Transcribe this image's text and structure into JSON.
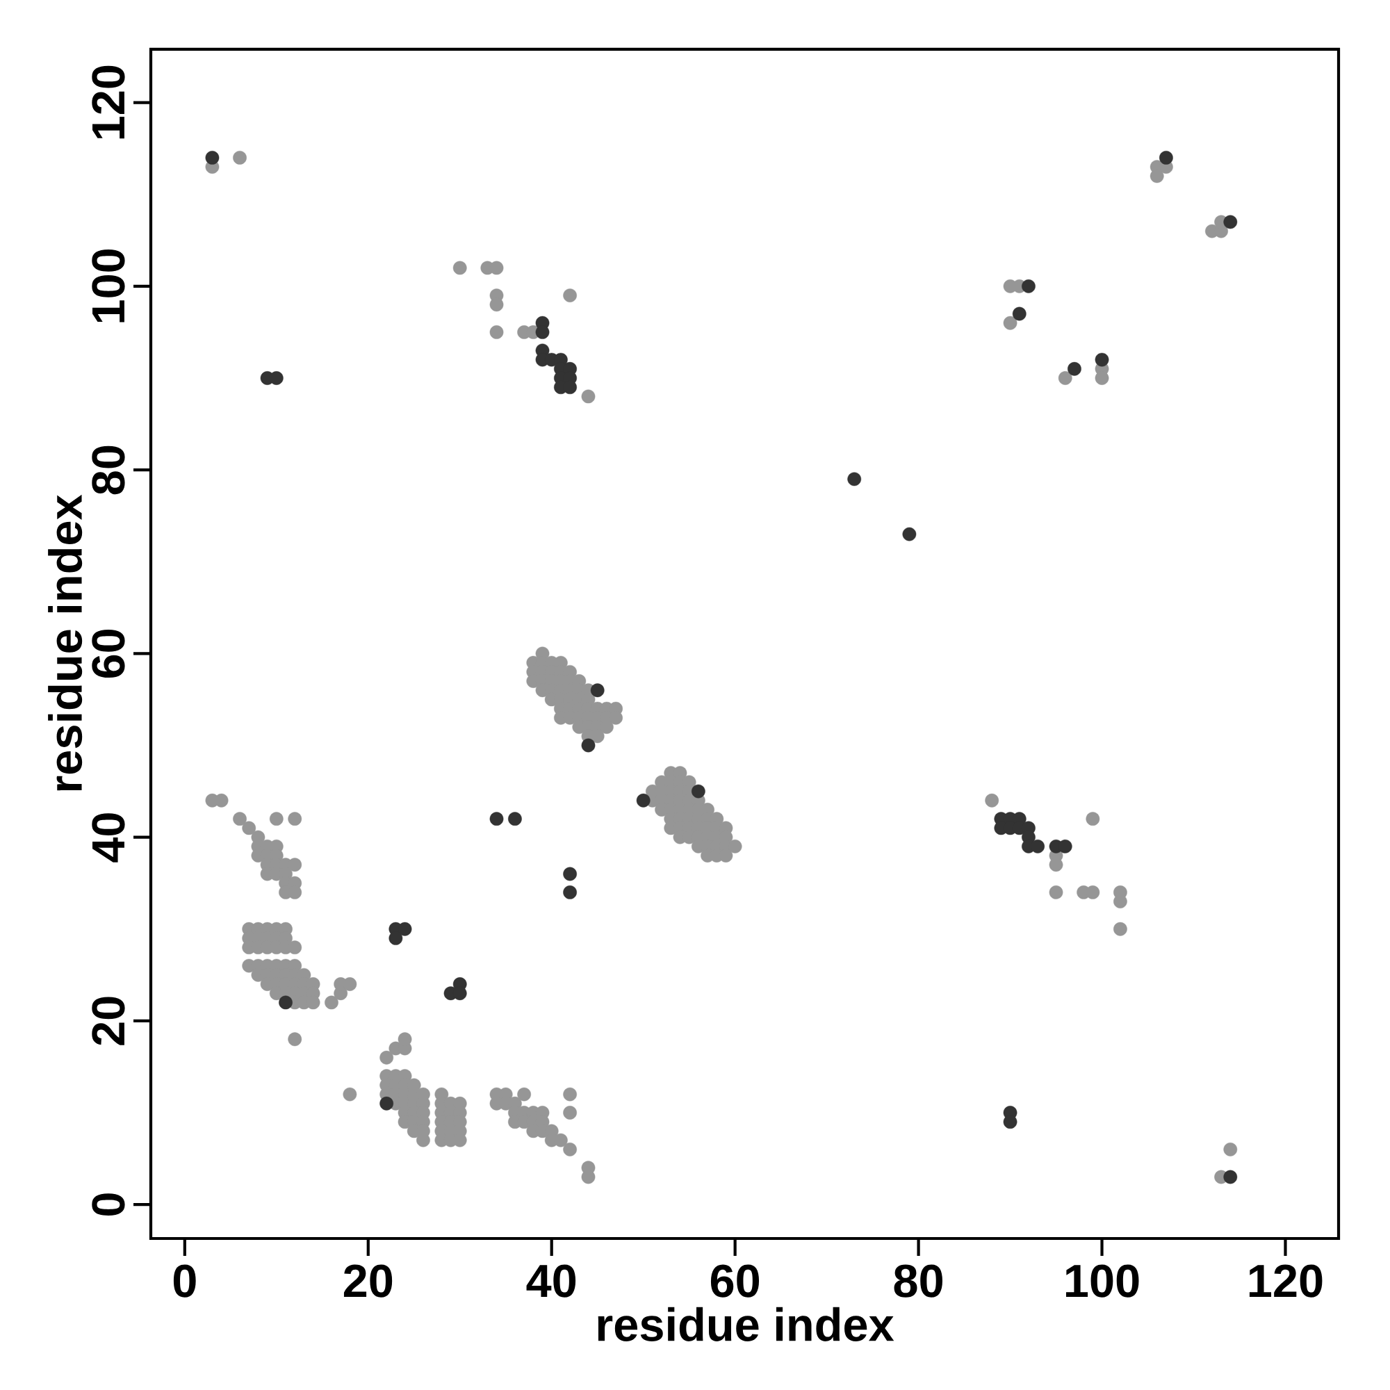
{
  "chart_data": {
    "type": "scatter",
    "xlabel": "residue index",
    "ylabel": "residue index",
    "xlim": [
      -3.7,
      125.8
    ],
    "ylim": [
      -3.7,
      125.8
    ],
    "xticks": [
      0,
      20,
      40,
      60,
      80,
      100,
      120
    ],
    "yticks": [
      0,
      20,
      40,
      60,
      80,
      100,
      120
    ],
    "grid": false,
    "series": [
      {
        "color": "#969696",
        "x": [
          3,
          6,
          106,
          107,
          106,
          112,
          113,
          113,
          30,
          33,
          34,
          34,
          34,
          34,
          37,
          38,
          42,
          44,
          90,
          91,
          90,
          96,
          100,
          100,
          88,
          95,
          95,
          95,
          98,
          99,
          99,
          102,
          102,
          102,
          113,
          114,
          44,
          44,
          42,
          42,
          42,
          18,
          12,
          3,
          4,
          6,
          10,
          12,
          16,
          17,
          17,
          18
        ],
        "values": [
          113,
          114,
          113,
          113,
          112,
          106,
          106,
          107,
          102,
          102,
          102,
          99,
          98,
          95,
          95,
          95,
          99,
          88,
          100,
          100,
          96,
          90,
          91,
          90,
          44,
          38,
          37,
          34,
          34,
          34,
          42,
          34,
          33,
          30,
          3,
          6,
          4,
          3,
          12,
          10,
          6,
          12,
          18,
          44,
          44,
          42,
          42,
          42,
          22,
          23,
          24,
          24
        ]
      },
      {
        "color": "#969696",
        "x": [
          7,
          8,
          8,
          9,
          10,
          8,
          9,
          10,
          9,
          10,
          11,
          12,
          9,
          10,
          11,
          11,
          12,
          11,
          12
        ],
        "values": [
          41,
          40,
          39,
          39,
          39,
          38,
          38,
          38,
          37,
          37,
          37,
          37,
          36,
          36,
          36,
          35,
          35,
          34,
          34
        ]
      },
      {
        "color": "#969696",
        "x": [
          7,
          8,
          9,
          10,
          11,
          7,
          8,
          9,
          10,
          11,
          7,
          8,
          9,
          10,
          11,
          12
        ],
        "values": [
          30,
          30,
          30,
          30,
          30,
          29,
          29,
          29,
          29,
          29,
          28,
          28,
          28,
          28,
          28,
          28
        ]
      },
      {
        "color": "#969696",
        "x": [
          7,
          8,
          9,
          10,
          11,
          12,
          8,
          9,
          10,
          11,
          12,
          13,
          9,
          10,
          11,
          12,
          13,
          14,
          10,
          11,
          12,
          13,
          14,
          12,
          13,
          14
        ],
        "values": [
          26,
          26,
          26,
          26,
          26,
          26,
          25,
          25,
          25,
          25,
          25,
          25,
          24,
          24,
          24,
          24,
          24,
          24,
          23,
          23,
          23,
          23,
          23,
          22,
          22,
          22
        ]
      },
      {
        "color": "#969696",
        "x": [
          22,
          23,
          24,
          24,
          22,
          23,
          24,
          22,
          23,
          24,
          25,
          22,
          23,
          24,
          25,
          26,
          23,
          24,
          25,
          26,
          24,
          25,
          26,
          24,
          25,
          26,
          25,
          26,
          26
        ],
        "values": [
          16,
          17,
          17,
          18,
          14,
          14,
          14,
          13,
          13,
          13,
          13,
          12,
          12,
          12,
          12,
          12,
          11,
          11,
          11,
          11,
          10,
          10,
          10,
          9,
          9,
          9,
          8,
          8,
          7
        ]
      },
      {
        "color": "#969696",
        "x": [
          28,
          28,
          29,
          30,
          28,
          29,
          30,
          28,
          29,
          30,
          28,
          29,
          30,
          28,
          29,
          30
        ],
        "values": [
          12,
          11,
          11,
          11,
          10,
          10,
          10,
          9,
          9,
          9,
          8,
          8,
          8,
          7,
          7,
          7
        ]
      },
      {
        "color": "#969696",
        "x": [
          34,
          35,
          37,
          34,
          35,
          36,
          36,
          37,
          38,
          39,
          36,
          37,
          38,
          39,
          38,
          39,
          40,
          40,
          41
        ],
        "values": [
          12,
          12,
          12,
          11,
          11,
          11,
          10,
          10,
          10,
          10,
          9,
          9,
          9,
          9,
          8,
          8,
          8,
          7,
          7
        ]
      },
      {
        "color": "#969696",
        "x": [
          39,
          38,
          39,
          40,
          41,
          38,
          39,
          40,
          41,
          42,
          38,
          39,
          40,
          41,
          42,
          43,
          39,
          40,
          41,
          42,
          43,
          44,
          40,
          41,
          42,
          43,
          44,
          41,
          42,
          43,
          44,
          45,
          46,
          47,
          41,
          42,
          43,
          44,
          45,
          46,
          47,
          43,
          44,
          45,
          46,
          44,
          45
        ],
        "values": [
          60,
          59,
          59,
          59,
          59,
          58,
          58,
          58,
          58,
          58,
          57,
          57,
          57,
          57,
          57,
          57,
          56,
          56,
          56,
          56,
          56,
          56,
          55,
          55,
          55,
          55,
          55,
          54,
          54,
          54,
          54,
          54,
          54,
          54,
          53,
          53,
          53,
          53,
          53,
          53,
          53,
          52,
          52,
          52,
          52,
          51,
          51
        ]
      },
      {
        "color": "#969696",
        "x": [
          53,
          54,
          52,
          53,
          54,
          55,
          51,
          52,
          53,
          54,
          55,
          51,
          52,
          53,
          54,
          55,
          56,
          52,
          53,
          54,
          55,
          56,
          57,
          53,
          54,
          55,
          56,
          57,
          58,
          53,
          54,
          55,
          56,
          57,
          58,
          59,
          54,
          55,
          56,
          57,
          58,
          59,
          56,
          57,
          58,
          59,
          60,
          57,
          58,
          59
        ],
        "values": [
          47,
          47,
          46,
          46,
          46,
          46,
          45,
          45,
          45,
          45,
          45,
          44,
          44,
          44,
          44,
          44,
          44,
          43,
          43,
          43,
          43,
          43,
          43,
          42,
          42,
          42,
          42,
          42,
          42,
          41,
          41,
          41,
          41,
          41,
          41,
          41,
          40,
          40,
          40,
          40,
          40,
          40,
          39,
          39,
          39,
          39,
          39,
          38,
          38,
          38
        ]
      },
      {
        "color": "#333333",
        "x": [
          3,
          9,
          10,
          39,
          39,
          39,
          39,
          40,
          41,
          41,
          42,
          41,
          42,
          41,
          42,
          92,
          91,
          97,
          100,
          73,
          79,
          45,
          44,
          56,
          50,
          34,
          36,
          89,
          90,
          91,
          89,
          90,
          91,
          92,
          92,
          92,
          93,
          95,
          96,
          42,
          42,
          23,
          24,
          23,
          11,
          30,
          29,
          30,
          22,
          90,
          90,
          114,
          107,
          114
        ],
        "values": [
          114,
          90,
          90,
          96,
          95,
          93,
          92,
          92,
          92,
          91,
          91,
          90,
          90,
          89,
          89,
          100,
          97,
          91,
          92,
          79,
          73,
          56,
          50,
          45,
          44,
          42,
          42,
          42,
          42,
          42,
          41,
          41,
          41,
          41,
          40,
          39,
          39,
          39,
          39,
          36,
          34,
          30,
          30,
          29,
          22,
          24,
          23,
          23,
          11,
          10,
          9,
          3,
          114,
          107
        ]
      }
    ]
  }
}
